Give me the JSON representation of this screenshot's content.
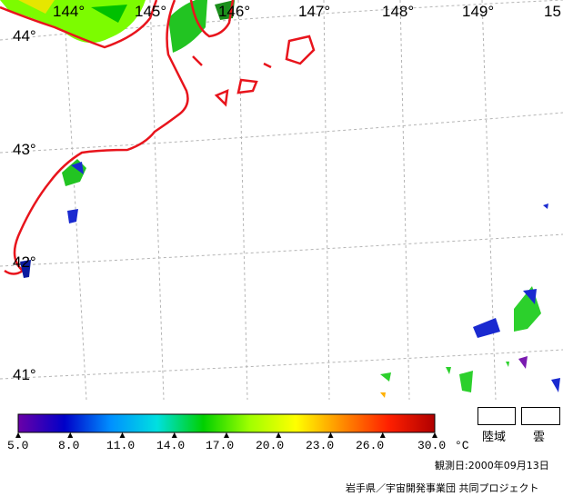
{
  "map": {
    "lon_labels": [
      "144°",
      "145°",
      "146°",
      "147°",
      "148°",
      "149°",
      "15"
    ],
    "lat_labels": [
      "44°",
      "43°",
      "42°",
      "41°"
    ],
    "colors": {
      "coast": "#e8141c",
      "grid": "#b4b4b4",
      "land": "#7cfc00",
      "cloud_blue": "#1a2ad0",
      "cloud_green": "#2cd02c"
    }
  },
  "scale": {
    "ticks": [
      "5.0",
      "8.0",
      "11.0",
      "14.0",
      "17.0",
      "20.0",
      "23.0",
      "26.0",
      "30.0"
    ],
    "unit": "°C",
    "stops": [
      "#6a00a8",
      "#0000c8",
      "#0090ff",
      "#00e0e0",
      "#00d000",
      "#a0ff00",
      "#ffff00",
      "#ff8c00",
      "#ff2000",
      "#b00000"
    ]
  },
  "legend": {
    "land_label": "陸域",
    "cloud_label": "雲"
  },
  "footer": {
    "date": "観測日:2000年09月13日",
    "credit": "岩手県／宇宙開発事業団  共同プロジェクト"
  }
}
